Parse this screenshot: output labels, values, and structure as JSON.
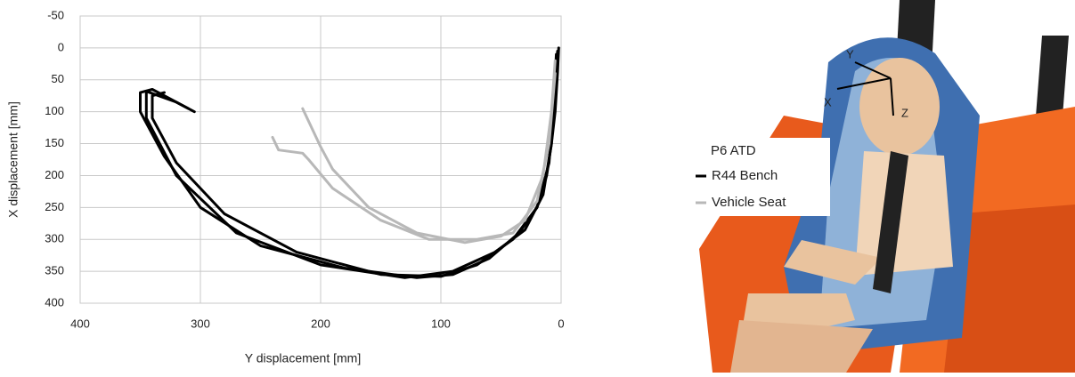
{
  "chart_data": {
    "type": "line",
    "x_label": "Y displacement [mm]",
    "y_label": "X displacement [mm]",
    "xlim": [
      400,
      0
    ],
    "ylim": [
      400,
      -50
    ],
    "xticks": [
      400,
      300,
      200,
      100,
      0
    ],
    "yticks": [
      -50,
      0,
      50,
      100,
      150,
      200,
      250,
      300,
      350,
      400
    ],
    "grid": true,
    "legend_title": "P6 ATD",
    "series": [
      {
        "name": "R44 Bench",
        "color": "#000000",
        "runs": [
          {
            "x": [
              2,
              3,
              5,
              8,
              12,
              20,
              35,
              60,
              90,
              120,
              180,
              250,
              300,
              330,
              350,
              350,
              340,
              310
            ],
            "y": [
              0,
              40,
              100,
              150,
              200,
              250,
              290,
              330,
              355,
              360,
              345,
              310,
              250,
              170,
              100,
              70,
              65,
              95
            ]
          },
          {
            "x": [
              3,
              5,
              8,
              15,
              30,
              55,
              90,
              130,
              200,
              270,
              320,
              345,
              345,
              320,
              305
            ],
            "y": [
              5,
              60,
              150,
              230,
              285,
              320,
              350,
              360,
              340,
              290,
              200,
              110,
              68,
              85,
              100
            ]
          },
          {
            "x": [
              4,
              6,
              10,
              20,
              40,
              70,
              100,
              150,
              220,
              280,
              320,
              340,
              340,
              330
            ],
            "y": [
              10,
              80,
              180,
              250,
              300,
              340,
              358,
              355,
              320,
              260,
              180,
              110,
              75,
              70
            ]
          }
        ]
      },
      {
        "name": "Vehicle Seat",
        "color": "#b8b8b8",
        "runs": [
          {
            "x": [
              5,
              8,
              15,
              30,
              50,
              80,
              120,
              160,
              190,
              200,
              215
            ],
            "y": [
              20,
              100,
              200,
              270,
              295,
              305,
              290,
              250,
              190,
              155,
              95
            ]
          },
          {
            "x": [
              5,
              10,
              20,
              40,
              70,
              110,
              150,
              190,
              210,
              215,
              235,
              240
            ],
            "y": [
              40,
              150,
              240,
              290,
              300,
              300,
              270,
              220,
              175,
              165,
              160,
              140
            ]
          }
        ]
      }
    ]
  },
  "photo_labels": {
    "y_axis": "Y",
    "x_axis": "X",
    "z_axis": "Z"
  }
}
